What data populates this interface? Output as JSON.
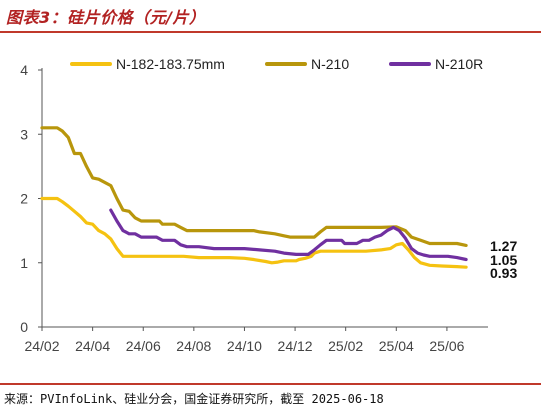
{
  "title": "图表3：硅片价格（元/片）",
  "source": "来源：PVInfoLink、硅业分会，国金证券研究所，截至 2025-06-18",
  "chart_data": {
    "type": "line",
    "title": "图表3：硅片价格（元/片）",
    "xlabel": "",
    "ylabel": "",
    "ylim": [
      0,
      4
    ],
    "yticks": [
      "0",
      "1",
      "2",
      "3",
      "4"
    ],
    "x_range": [
      2024.0833,
      2025.5
    ],
    "xticks": [
      {
        "label": "24/02",
        "x": 2024.0833
      },
      {
        "label": "24/04",
        "x": 2024.25
      },
      {
        "label": "24/06",
        "x": 2024.4167
      },
      {
        "label": "24/08",
        "x": 2024.5833
      },
      {
        "label": "24/10",
        "x": 2024.75
      },
      {
        "label": "24/12",
        "x": 2024.9167
      },
      {
        "label": "25/02",
        "x": 2025.0833
      },
      {
        "label": "25/04",
        "x": 2025.25
      },
      {
        "label": "25/06",
        "x": 2025.4167
      }
    ],
    "grid": false,
    "legend_position": "top",
    "series": [
      {
        "name": "N-182-183.75mm",
        "color": "#F5C211",
        "end_label": "0.93",
        "points": [
          [
            2024.0833,
            2.0
          ],
          [
            2024.1333,
            2.0
          ],
          [
            2024.15,
            1.95
          ],
          [
            2024.17,
            1.88
          ],
          [
            2024.19,
            1.8
          ],
          [
            2024.21,
            1.72
          ],
          [
            2024.23,
            1.62
          ],
          [
            2024.25,
            1.6
          ],
          [
            2024.27,
            1.5
          ],
          [
            2024.29,
            1.45
          ],
          [
            2024.31,
            1.37
          ],
          [
            2024.33,
            1.22
          ],
          [
            2024.35,
            1.1
          ],
          [
            2024.45,
            1.1
          ],
          [
            2024.55,
            1.1
          ],
          [
            2024.6,
            1.08
          ],
          [
            2024.7,
            1.08
          ],
          [
            2024.75,
            1.07
          ],
          [
            2024.78,
            1.05
          ],
          [
            2024.82,
            1.02
          ],
          [
            2024.84,
            1.0
          ],
          [
            2024.86,
            1.01
          ],
          [
            2024.88,
            1.03
          ],
          [
            2024.92,
            1.03
          ],
          [
            2024.93,
            1.05
          ],
          [
            2024.95,
            1.07
          ],
          [
            2024.97,
            1.1
          ],
          [
            2024.98,
            1.15
          ],
          [
            2025.0,
            1.18
          ],
          [
            2025.05,
            1.18
          ],
          [
            2025.1,
            1.18
          ],
          [
            2025.15,
            1.18
          ],
          [
            2025.2,
            1.2
          ],
          [
            2025.23,
            1.22
          ],
          [
            2025.25,
            1.28
          ],
          [
            2025.27,
            1.3
          ],
          [
            2025.29,
            1.2
          ],
          [
            2025.31,
            1.08
          ],
          [
            2025.33,
            1.0
          ],
          [
            2025.36,
            0.96
          ],
          [
            2025.4,
            0.95
          ],
          [
            2025.45,
            0.94
          ],
          [
            2025.48,
            0.93
          ]
        ]
      },
      {
        "name": "N-210",
        "color": "#B8960C",
        "end_label": "1.27",
        "points": [
          [
            2024.0833,
            3.1
          ],
          [
            2024.1333,
            3.1
          ],
          [
            2024.15,
            3.05
          ],
          [
            2024.17,
            2.95
          ],
          [
            2024.19,
            2.7
          ],
          [
            2024.21,
            2.7
          ],
          [
            2024.23,
            2.5
          ],
          [
            2024.25,
            2.32
          ],
          [
            2024.27,
            2.3
          ],
          [
            2024.29,
            2.25
          ],
          [
            2024.31,
            2.2
          ],
          [
            2024.33,
            2.0
          ],
          [
            2024.35,
            1.82
          ],
          [
            2024.37,
            1.8
          ],
          [
            2024.39,
            1.7
          ],
          [
            2024.41,
            1.65
          ],
          [
            2024.47,
            1.65
          ],
          [
            2024.48,
            1.6
          ],
          [
            2024.52,
            1.6
          ],
          [
            2024.54,
            1.55
          ],
          [
            2024.56,
            1.5
          ],
          [
            2024.7,
            1.5
          ],
          [
            2024.78,
            1.5
          ],
          [
            2024.8,
            1.48
          ],
          [
            2024.85,
            1.45
          ],
          [
            2024.88,
            1.42
          ],
          [
            2024.9,
            1.4
          ],
          [
            2024.98,
            1.4
          ],
          [
            2025.0,
            1.48
          ],
          [
            2025.02,
            1.55
          ],
          [
            2025.1,
            1.55
          ],
          [
            2025.2,
            1.55
          ],
          [
            2025.25,
            1.56
          ],
          [
            2025.28,
            1.5
          ],
          [
            2025.3,
            1.4
          ],
          [
            2025.33,
            1.35
          ],
          [
            2025.36,
            1.3
          ],
          [
            2025.45,
            1.3
          ],
          [
            2025.48,
            1.27
          ]
        ]
      },
      {
        "name": "N-210R",
        "color": "#7030A0",
        "end_label": "1.05",
        "points": [
          [
            2024.31,
            1.82
          ],
          [
            2024.33,
            1.65
          ],
          [
            2024.35,
            1.5
          ],
          [
            2024.37,
            1.45
          ],
          [
            2024.39,
            1.45
          ],
          [
            2024.41,
            1.4
          ],
          [
            2024.46,
            1.4
          ],
          [
            2024.48,
            1.35
          ],
          [
            2024.52,
            1.35
          ],
          [
            2024.54,
            1.28
          ],
          [
            2024.56,
            1.25
          ],
          [
            2024.6,
            1.25
          ],
          [
            2024.65,
            1.22
          ],
          [
            2024.75,
            1.22
          ],
          [
            2024.8,
            1.2
          ],
          [
            2024.85,
            1.18
          ],
          [
            2024.88,
            1.15
          ],
          [
            2024.92,
            1.13
          ],
          [
            2024.96,
            1.13
          ],
          [
            2024.98,
            1.2
          ],
          [
            2025.0,
            1.28
          ],
          [
            2025.02,
            1.35
          ],
          [
            2025.07,
            1.35
          ],
          [
            2025.08,
            1.3
          ],
          [
            2025.12,
            1.3
          ],
          [
            2025.14,
            1.35
          ],
          [
            2025.16,
            1.35
          ],
          [
            2025.18,
            1.4
          ],
          [
            2025.2,
            1.43
          ],
          [
            2025.22,
            1.5
          ],
          [
            2025.24,
            1.55
          ],
          [
            2025.26,
            1.5
          ],
          [
            2025.28,
            1.38
          ],
          [
            2025.3,
            1.22
          ],
          [
            2025.32,
            1.15
          ],
          [
            2025.34,
            1.12
          ],
          [
            2025.36,
            1.1
          ],
          [
            2025.42,
            1.1
          ],
          [
            2025.45,
            1.08
          ],
          [
            2025.48,
            1.05
          ]
        ]
      }
    ]
  }
}
